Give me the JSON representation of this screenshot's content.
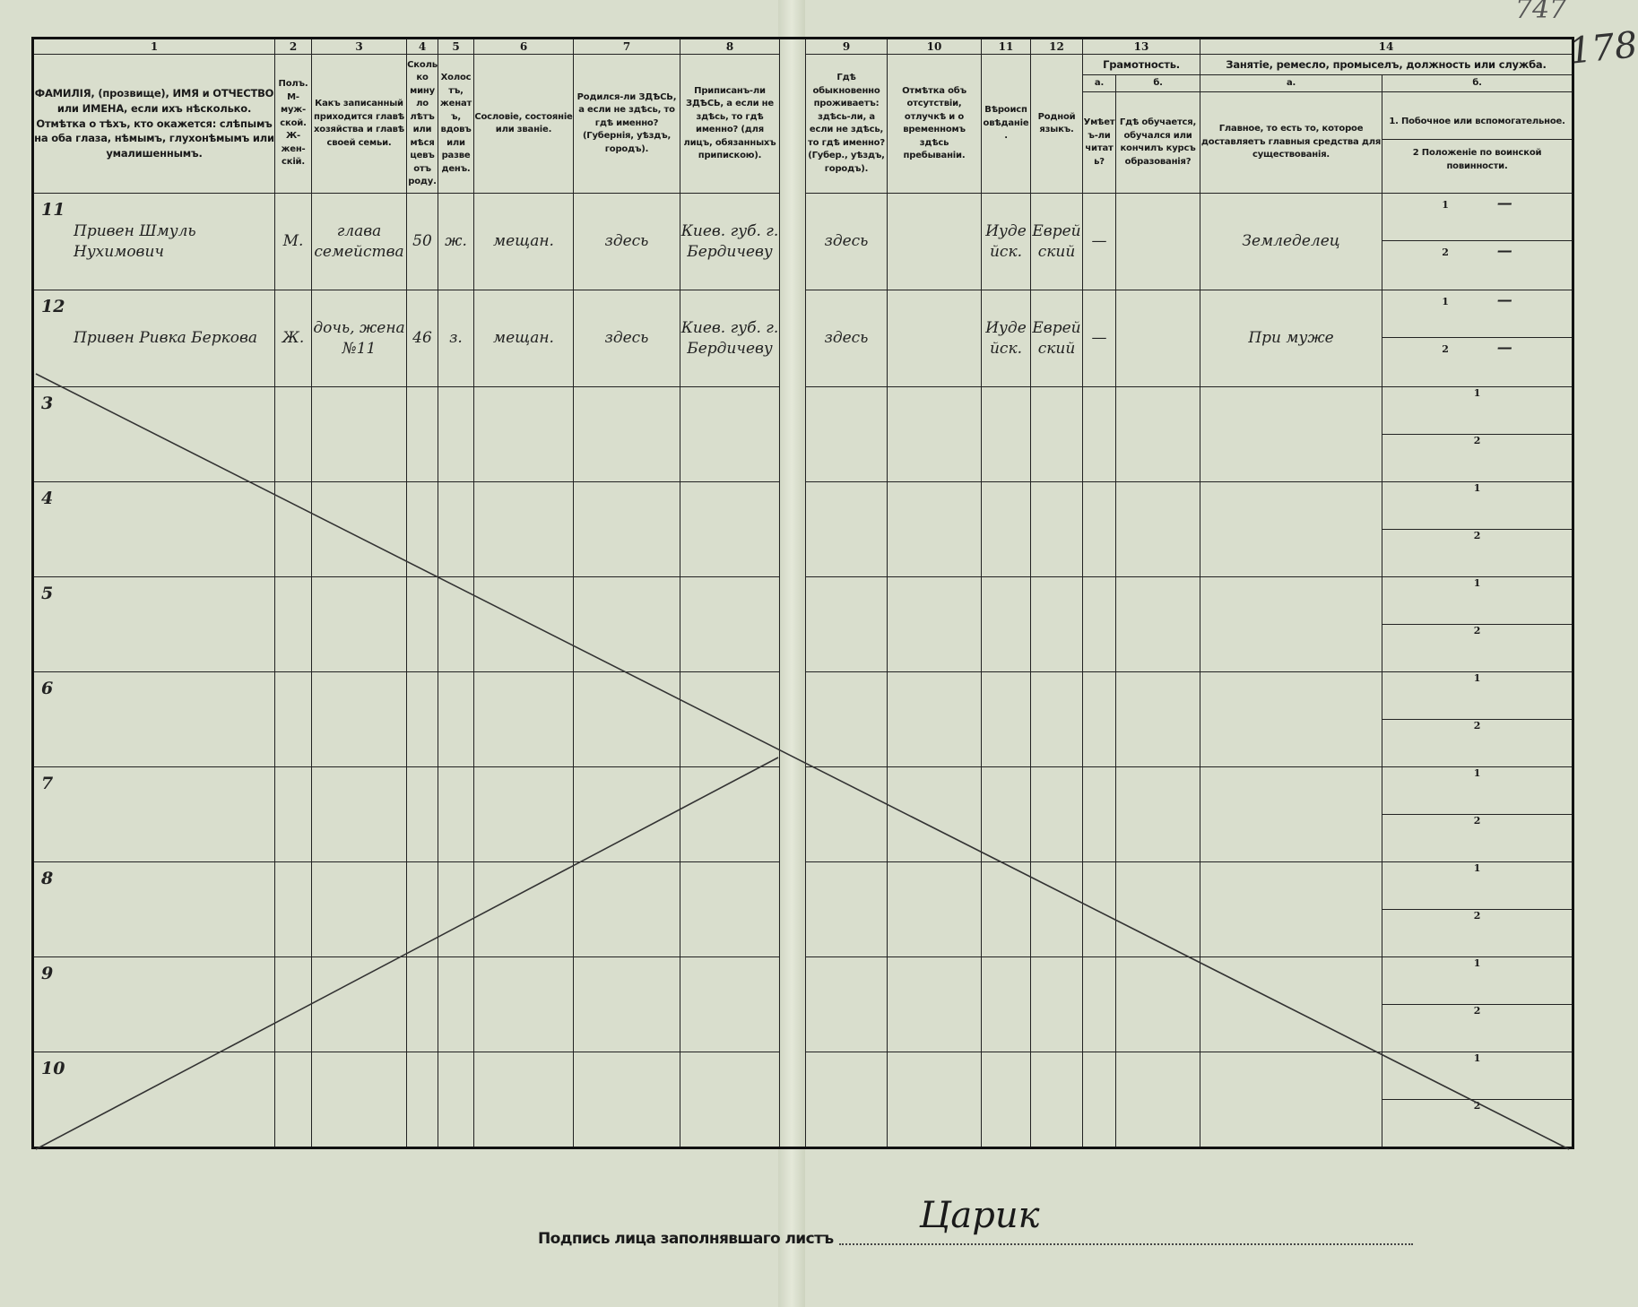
{
  "page_number": "178",
  "page_number_crossed": "747",
  "column_numbers": [
    "1",
    "2",
    "3",
    "4",
    "5",
    "6",
    "7",
    "8",
    "9",
    "10",
    "11",
    "12",
    "13",
    "14"
  ],
  "headers": {
    "c1": "ФАМИЛІЯ, (прозвище), ИМЯ и ОТЧЕСТВО или ИМЕНА, если ихъ нѣсколько. Отмѣтка о тѣхъ, кто окажется: слѣпымъ на оба глаза, нѣмымъ, глухонѣмымъ или умалишеннымъ.",
    "c2": "Полъ. М-муж-ской. Ж-жен-скій.",
    "c3": "Какъ записанный приходится главѣ хозяйства и главѣ своей семьи.",
    "c4": "Сколько минуло лѣтъ или мѣсяцевъ отъ роду.",
    "c5": "Холостъ, женатъ, вдовъ или разведенъ.",
    "c6": "Сословіе, состояніе или званіе.",
    "c7": "Родился-ли ЗДѢСЬ, а если не здѣсь, то гдѣ именно? (Губернія, уѣздъ, городъ).",
    "c8": "Приписанъ-ли ЗДѢСЬ, а если не здѣсь, то гдѣ именно? (для лицъ, обязанныхъ припискою).",
    "c9": "Гдѣ обыкновенно проживаетъ: здѣсь-ли, а если не здѣсь, то гдѣ именно? (Губер., уѣздъ, городъ).",
    "c10": "Отмѣтка объ отсутствіи, отлучкѣ и о временномъ здѣсь пребываніи.",
    "c11": "Вѣроисповѣданіе.",
    "c12": "Родной языкъ.",
    "c13": "Грамотность.",
    "c13a_letter": "а.",
    "c13b_letter": "б.",
    "c13a": "Умѣетъ-ли читать?",
    "c13b": "Гдѣ обучается, обучался или кончилъ курсъ образованія?",
    "c14": "Занятіе, ремесло, промыселъ, должность или служба.",
    "c14a_letter": "а.",
    "c14b_letter": "б.",
    "c14a": "Главное, то есть то, которое доставляетъ главныя средства для существованія.",
    "c14b1": "1. Побочное или вспомогательное.",
    "c14b2": "2 Положеніе по воинской повинности."
  },
  "rows": [
    {
      "num": "11",
      "name": "Привен Шмуль Нухимович",
      "sex": "М.",
      "relation": "глава семейства",
      "age": "50",
      "marital": "ж.",
      "estate": "мещан.",
      "born": "здесь",
      "registered": "Киев. губ. г. Бердичеву",
      "resides": "здесь",
      "absence": "",
      "religion": "Иудейск.",
      "language": "Еврейский",
      "literate": "—",
      "education": "",
      "occupation": "Земледелец",
      "side1": "1",
      "side_val": "—",
      "mil2": "2",
      "mil_val": "—"
    },
    {
      "num": "12",
      "name": "Привен Ривка Беркова",
      "sex": "Ж.",
      "relation": "дочь, жена №11",
      "age": "46",
      "marital": "з.",
      "estate": "мещан.",
      "born": "здесь",
      "registered": "Киев. губ. г. Бердичеву",
      "resides": "здесь",
      "absence": "",
      "religion": "Иудейск.",
      "language": "Еврейский",
      "literate": "—",
      "education": "",
      "occupation": "При муже",
      "side1": "1",
      "side_val": "—",
      "mil2": "2",
      "mil_val": "—"
    },
    {
      "num": "3",
      "side1": "1",
      "mil2": "2"
    },
    {
      "num": "4",
      "side1": "1",
      "mil2": "2"
    },
    {
      "num": "5",
      "side1": "1",
      "mil2": "2"
    },
    {
      "num": "6",
      "side1": "1",
      "mil2": "2"
    },
    {
      "num": "7",
      "side1": "1",
      "mil2": "2"
    },
    {
      "num": "8",
      "side1": "1",
      "mil2": "2"
    },
    {
      "num": "9",
      "side1": "1",
      "mil2": "2"
    },
    {
      "num": "10",
      "side1": "1",
      "mil2": "2"
    }
  ],
  "signature": {
    "label": "Подпись лица заполнявшаго листъ",
    "value": "Царик"
  }
}
